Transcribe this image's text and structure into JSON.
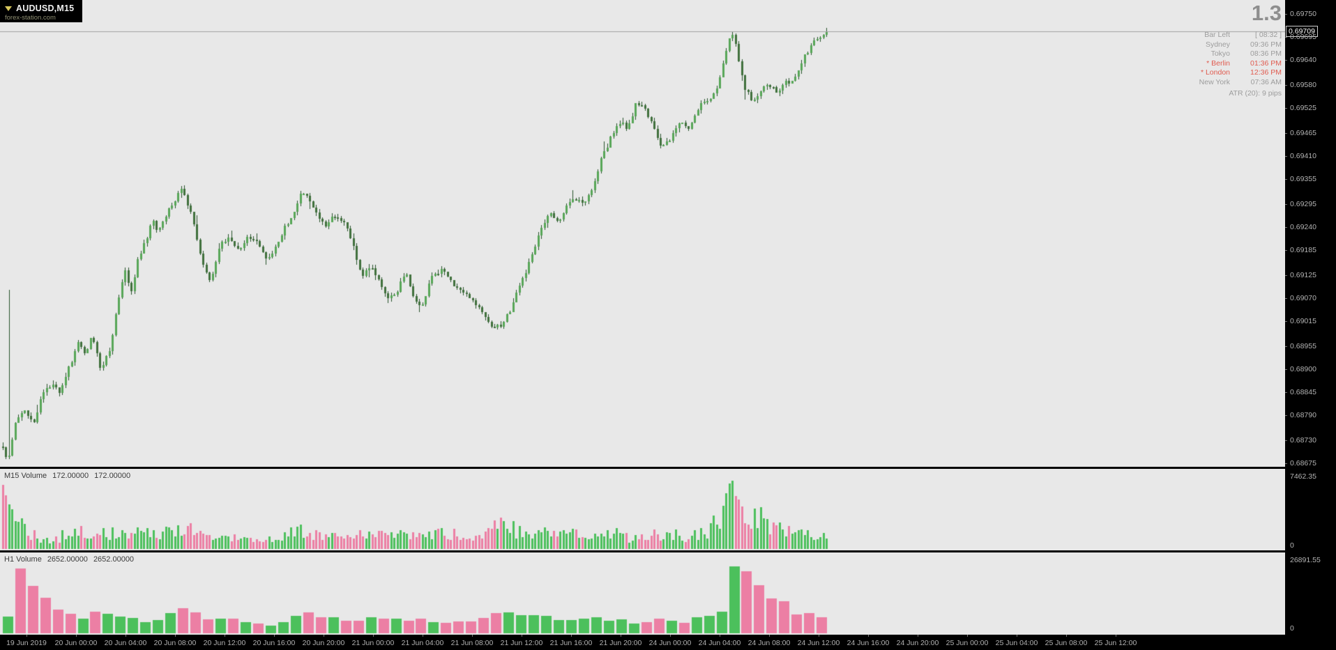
{
  "header": {
    "symbol": "AUDUSD,M15",
    "watermark": "forex-station.com",
    "spread": "1.3"
  },
  "clock": {
    "rows": [
      {
        "label": "Bar Left",
        "value": "[ 08:32 ]",
        "red": false
      },
      {
        "label": "Sydney",
        "value": "09:36 PM",
        "red": false
      },
      {
        "label": "Tokyo",
        "value": "08:36 PM",
        "red": false
      },
      {
        "label": "* Berlin",
        "value": "01:36 PM",
        "red": true
      },
      {
        "label": "* London",
        "value": "12:36 PM",
        "red": true
      },
      {
        "label": "New York",
        "value": "07:36 AM",
        "red": false
      }
    ],
    "atr": "ATR (20): 9 pips"
  },
  "price_axis": {
    "current": "0.69709",
    "ticks": [
      "0.69750",
      "0.69695",
      "0.69640",
      "0.69580",
      "0.69525",
      "0.69465",
      "0.69410",
      "0.69355",
      "0.69295",
      "0.69240",
      "0.69185",
      "0.69125",
      "0.69070",
      "0.69015",
      "0.68955",
      "0.68900",
      "0.68845",
      "0.68790",
      "0.68730",
      "0.68675"
    ]
  },
  "panes": {
    "m15": {
      "label": "M15 Volume",
      "value1": "172.00000",
      "value2": "172.00000",
      "scale_max": "7462.35",
      "scale_min": "0"
    },
    "h1": {
      "label": "H1 Volume",
      "value1": "2652.00000",
      "value2": "2652.00000",
      "scale_max": "26891.55",
      "scale_min": "0"
    }
  },
  "time_axis": {
    "labels": [
      "19 Jun 2019",
      "20 Jun 00:00",
      "20 Jun 04:00",
      "20 Jun 08:00",
      "20 Jun 12:00",
      "20 Jun 16:00",
      "20 Jun 20:00",
      "21 Jun 00:00",
      "21 Jun 04:00",
      "21 Jun 08:00",
      "21 Jun 12:00",
      "21 Jun 16:00",
      "21 Jun 20:00",
      "24 Jun 00:00",
      "24 Jun 04:00",
      "24 Jun 08:00",
      "24 Jun 12:00",
      "24 Jun 16:00",
      "24 Jun 20:00",
      "25 Jun 00:00",
      "25 Jun 04:00",
      "25 Jun 08:00",
      "25 Jun 12:00"
    ]
  },
  "chart_data": {
    "type": "candlestick",
    "symbol": "AUDUSD",
    "timeframe": "M15",
    "title": "AUDUSD,M15",
    "bid": 0.69709,
    "spread_pips": 1.3,
    "atr_pips": 9,
    "ylim": [
      0.68675,
      0.6975
    ],
    "candle_count": 264,
    "seed": 7,
    "price_path": [
      [
        4,
        0.6872
      ],
      [
        8,
        0.6869
      ],
      [
        14,
        0.687
      ],
      [
        20,
        0.6876
      ],
      [
        28,
        0.6879
      ],
      [
        38,
        0.688
      ],
      [
        48,
        0.6877
      ],
      [
        60,
        0.6884
      ],
      [
        72,
        0.68865
      ],
      [
        85,
        0.6885
      ],
      [
        95,
        0.6889
      ],
      [
        105,
        0.6893
      ],
      [
        112,
        0.6896
      ],
      [
        120,
        0.6894
      ],
      [
        132,
        0.68975
      ],
      [
        145,
        0.68895
      ],
      [
        158,
        0.6895
      ],
      [
        172,
        0.6909
      ],
      [
        180,
        0.6914
      ],
      [
        188,
        0.6908
      ],
      [
        198,
        0.6917
      ],
      [
        210,
        0.6921
      ],
      [
        218,
        0.69255
      ],
      [
        228,
        0.6923
      ],
      [
        240,
        0.6928
      ],
      [
        252,
        0.6931
      ],
      [
        262,
        0.6933
      ],
      [
        270,
        0.6929
      ],
      [
        280,
        0.69235
      ],
      [
        292,
        0.6914
      ],
      [
        302,
        0.6911
      ],
      [
        315,
        0.69195
      ],
      [
        328,
        0.6922
      ],
      [
        342,
        0.69185
      ],
      [
        355,
        0.69215
      ],
      [
        368,
        0.692
      ],
      [
        380,
        0.6917
      ],
      [
        392,
        0.6918
      ],
      [
        405,
        0.6923
      ],
      [
        418,
        0.69265
      ],
      [
        432,
        0.6932
      ],
      [
        442,
        0.6931
      ],
      [
        452,
        0.69275
      ],
      [
        465,
        0.6924
      ],
      [
        478,
        0.6927
      ],
      [
        492,
        0.69255
      ],
      [
        505,
        0.69205
      ],
      [
        518,
        0.69125
      ],
      [
        532,
        0.69145
      ],
      [
        545,
        0.69105
      ],
      [
        558,
        0.69065
      ],
      [
        570,
        0.6909
      ],
      [
        582,
        0.6913
      ],
      [
        592,
        0.6907
      ],
      [
        605,
        0.69055
      ],
      [
        618,
        0.69115
      ],
      [
        632,
        0.6914
      ],
      [
        645,
        0.6911
      ],
      [
        658,
        0.69095
      ],
      [
        672,
        0.6907
      ],
      [
        685,
        0.6905
      ],
      [
        698,
        0.69015
      ],
      [
        710,
        0.68998
      ],
      [
        722,
        0.6901
      ],
      [
        735,
        0.69055
      ],
      [
        748,
        0.6911
      ],
      [
        762,
        0.6917
      ],
      [
        775,
        0.69235
      ],
      [
        788,
        0.69275
      ],
      [
        800,
        0.6925
      ],
      [
        812,
        0.69285
      ],
      [
        825,
        0.6931
      ],
      [
        838,
        0.69295
      ],
      [
        850,
        0.6934
      ],
      [
        862,
        0.694
      ],
      [
        875,
        0.6945
      ],
      [
        888,
        0.6949
      ],
      [
        900,
        0.69475
      ],
      [
        912,
        0.6954
      ],
      [
        925,
        0.6952
      ],
      [
        938,
        0.69475
      ],
      [
        950,
        0.6943
      ],
      [
        962,
        0.6945
      ],
      [
        975,
        0.6949
      ],
      [
        988,
        0.69475
      ],
      [
        1000,
        0.6952
      ],
      [
        1012,
        0.69545
      ],
      [
        1025,
        0.6956
      ],
      [
        1035,
        0.6962
      ],
      [
        1045,
        0.6969
      ],
      [
        1052,
        0.69705
      ],
      [
        1058,
        0.6964
      ],
      [
        1068,
        0.6957
      ],
      [
        1078,
        0.69545
      ],
      [
        1090,
        0.69565
      ],
      [
        1102,
        0.6958
      ],
      [
        1114,
        0.6956
      ],
      [
        1126,
        0.69585
      ],
      [
        1138,
        0.69595
      ],
      [
        1150,
        0.6964
      ],
      [
        1162,
        0.69675
      ],
      [
        1172,
        0.69695
      ],
      [
        1185,
        0.69709
      ]
    ],
    "overrides": [
      {
        "i": 2,
        "high": 0.6909,
        "low": 0.68685
      }
    ],
    "volume_m15": {
      "scale_max": 7462.35,
      "current": 172,
      "path": [
        [
          4,
          7000
        ],
        [
          10,
          5300
        ],
        [
          18,
          3800
        ],
        [
          28,
          2600
        ],
        [
          40,
          1800
        ],
        [
          55,
          1100
        ],
        [
          70,
          800
        ],
        [
          85,
          1200
        ],
        [
          100,
          1900
        ],
        [
          112,
          2300
        ],
        [
          125,
          1700
        ],
        [
          140,
          1400
        ],
        [
          155,
          1600
        ],
        [
          170,
          1900
        ],
        [
          185,
          1500
        ],
        [
          200,
          1700
        ],
        [
          215,
          1500
        ],
        [
          230,
          1800
        ],
        [
          245,
          2100
        ],
        [
          260,
          2300
        ],
        [
          272,
          1900
        ],
        [
          288,
          1500
        ],
        [
          305,
          1200
        ],
        [
          320,
          1350
        ],
        [
          335,
          1500
        ],
        [
          352,
          1100
        ],
        [
          368,
          850
        ],
        [
          385,
          950
        ],
        [
          400,
          1400
        ],
        [
          415,
          1700
        ],
        [
          430,
          1800
        ],
        [
          445,
          1500
        ],
        [
          460,
          1300
        ],
        [
          478,
          1450
        ],
        [
          495,
          1150
        ],
        [
          512,
          1350
        ],
        [
          530,
          1500
        ],
        [
          548,
          1650
        ],
        [
          565,
          1700
        ],
        [
          582,
          1450
        ],
        [
          600,
          1300
        ],
        [
          618,
          1500
        ],
        [
          635,
          1650
        ],
        [
          652,
          1450
        ],
        [
          670,
          1250
        ],
        [
          688,
          1350
        ],
        [
          702,
          2300
        ],
        [
          715,
          2700
        ],
        [
          728,
          2300
        ],
        [
          742,
          1900
        ],
        [
          758,
          1700
        ],
        [
          775,
          1900
        ],
        [
          792,
          1600
        ],
        [
          810,
          1400
        ],
        [
          828,
          1550
        ],
        [
          845,
          1250
        ],
        [
          862,
          1450
        ],
        [
          880,
          1650
        ],
        [
          898,
          1250
        ],
        [
          915,
          950
        ],
        [
          930,
          1500
        ],
        [
          948,
          1350
        ],
        [
          965,
          1700
        ],
        [
          982,
          1300
        ],
        [
          1000,
          1550
        ],
        [
          1015,
          1850
        ],
        [
          1030,
          3200
        ],
        [
          1040,
          5200
        ],
        [
          1047,
          7350
        ],
        [
          1054,
          6300
        ],
        [
          1062,
          4600
        ],
        [
          1072,
          3300
        ],
        [
          1082,
          3600
        ],
        [
          1095,
          2800
        ],
        [
          1110,
          2500
        ],
        [
          1125,
          2200
        ],
        [
          1140,
          1950
        ],
        [
          1155,
          1750
        ],
        [
          1170,
          1550
        ],
        [
          1185,
          1400
        ]
      ]
    },
    "volume_h1": {
      "scale_max": 26891.55,
      "current": 2652,
      "group": 4,
      "path": [
        [
          10,
          6000
        ],
        [
          28,
          25800
        ],
        [
          46,
          18000
        ],
        [
          66,
          13000
        ],
        [
          84,
          9500
        ],
        [
          102,
          7000
        ],
        [
          120,
          5000
        ],
        [
          140,
          7600
        ],
        [
          158,
          8800
        ],
        [
          176,
          7200
        ],
        [
          196,
          5400
        ],
        [
          214,
          4800
        ],
        [
          232,
          6400
        ],
        [
          250,
          7800
        ],
        [
          266,
          8800
        ],
        [
          284,
          7600
        ],
        [
          304,
          5600
        ],
        [
          324,
          4400
        ],
        [
          344,
          5200
        ],
        [
          364,
          3800
        ],
        [
          386,
          3000
        ],
        [
          406,
          4600
        ],
        [
          426,
          6600
        ],
        [
          444,
          7800
        ],
        [
          462,
          7000
        ],
        [
          482,
          5600
        ],
        [
          502,
          4800
        ],
        [
          522,
          5800
        ],
        [
          542,
          6600
        ],
        [
          562,
          6200
        ],
        [
          582,
          5400
        ],
        [
          602,
          5800
        ],
        [
          622,
          5200
        ],
        [
          642,
          4600
        ],
        [
          662,
          4200
        ],
        [
          682,
          5200
        ],
        [
          700,
          6800
        ],
        [
          718,
          7800
        ],
        [
          738,
          6800
        ],
        [
          758,
          6000
        ],
        [
          778,
          6600
        ],
        [
          798,
          5600
        ],
        [
          818,
          5000
        ],
        [
          838,
          5600
        ],
        [
          858,
          6400
        ],
        [
          878,
          5600
        ],
        [
          898,
          4200
        ],
        [
          918,
          3400
        ],
        [
          938,
          4600
        ],
        [
          958,
          5400
        ],
        [
          978,
          4600
        ],
        [
          998,
          5200
        ],
        [
          1018,
          6400
        ],
        [
          1036,
          9800
        ],
        [
          1048,
          19000
        ],
        [
          1055,
          26500
        ],
        [
          1064,
          23800
        ],
        [
          1075,
          21000
        ],
        [
          1088,
          17500
        ],
        [
          1102,
          14000
        ],
        [
          1118,
          11000
        ],
        [
          1136,
          8600
        ],
        [
          1156,
          6800
        ],
        [
          1176,
          5400
        ],
        [
          1185,
          4800
        ]
      ],
      "color_overrides": {
        "0": "up",
        "1": "down",
        "2": "down",
        "3": "down",
        "4": "down",
        "5": "down",
        "57": "up",
        "58": "up",
        "59": "down",
        "60": "down",
        "61": "down",
        "62": "down",
        "63": "down",
        "64": "down",
        "65": "down"
      }
    },
    "colors": {
      "bg": "#e8e8e8",
      "wick": "#26522a",
      "up": "#57a657",
      "down": "#40703c",
      "vol_up": "#4cc05c",
      "vol_down": "#ec7fa4",
      "bid_line": "#a2a2a2",
      "axis_bg": "#000000",
      "axis_text": "#b4b4b4",
      "clock_red": "#e05b4f"
    }
  }
}
